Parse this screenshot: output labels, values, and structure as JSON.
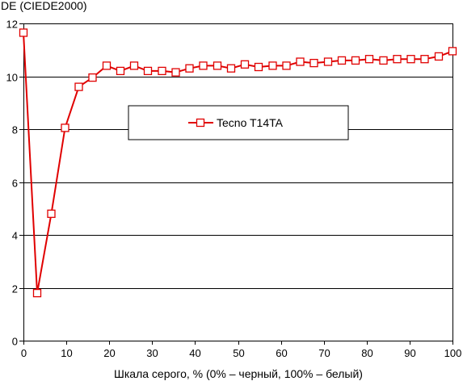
{
  "chart_data": {
    "type": "line",
    "ylabel": "DE (CIEDE2000)",
    "xlabel": "Шкала серого, % (0% – черный, 100% – белый)",
    "xlim": [
      0,
      100
    ],
    "ylim": [
      0,
      12
    ],
    "x_ticks": [
      0,
      10,
      20,
      30,
      40,
      50,
      60,
      70,
      80,
      90,
      100
    ],
    "y_ticks": [
      0,
      2,
      4,
      6,
      8,
      10,
      12
    ],
    "grid": "horizontal",
    "legend_position": "center",
    "series": [
      {
        "name": "Tecno T14TA",
        "color": "#e00000",
        "marker": "square-open",
        "x": [
          0,
          3.2,
          6.5,
          9.7,
          12.9,
          16.1,
          19.4,
          22.6,
          25.8,
          29.0,
          32.3,
          35.5,
          38.7,
          41.9,
          45.2,
          48.4,
          51.6,
          54.8,
          58.1,
          61.3,
          64.5,
          67.7,
          71.0,
          74.2,
          77.4,
          80.6,
          83.9,
          87.1,
          90.3,
          93.5,
          96.8,
          100
        ],
        "values": [
          11.65,
          1.8,
          4.8,
          8.05,
          9.6,
          9.95,
          10.4,
          10.2,
          10.4,
          10.2,
          10.2,
          10.15,
          10.3,
          10.4,
          10.4,
          10.3,
          10.45,
          10.35,
          10.4,
          10.4,
          10.55,
          10.5,
          10.55,
          10.6,
          10.6,
          10.65,
          10.6,
          10.65,
          10.65,
          10.65,
          10.75,
          10.95
        ]
      }
    ]
  }
}
